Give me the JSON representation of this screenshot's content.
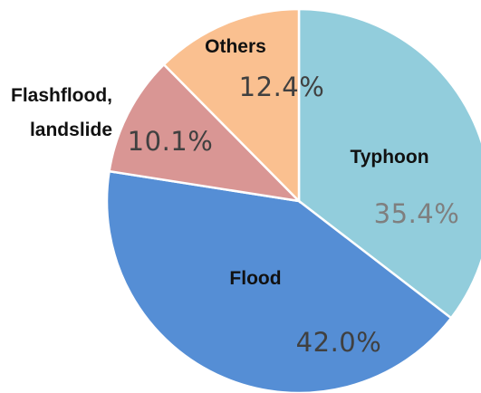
{
  "chart_data": {
    "type": "pie",
    "start_angle_deg": 0,
    "direction": "clockwise",
    "slices": [
      {
        "key": "typhoon",
        "label_lines": [
          "Typhoon"
        ],
        "value": 35.4,
        "value_label": "35.4%",
        "color": "#92CDDC",
        "value_color": "#7f7f7f"
      },
      {
        "key": "flood",
        "label_lines": [
          "Flood"
        ],
        "value": 42.0,
        "value_label": "42.0%",
        "color": "#558ED5",
        "value_color": "#404040"
      },
      {
        "key": "flashflood",
        "label_lines": [
          "Flashflood,",
          "landslide"
        ],
        "value": 10.1,
        "value_label": "10.1%",
        "color": "#D99694",
        "value_color": "#404040"
      },
      {
        "key": "others",
        "label_lines": [
          "Others"
        ],
        "value": 12.4,
        "value_label": "12.4%",
        "color": "#FAC090",
        "value_color": "#404040"
      }
    ]
  }
}
